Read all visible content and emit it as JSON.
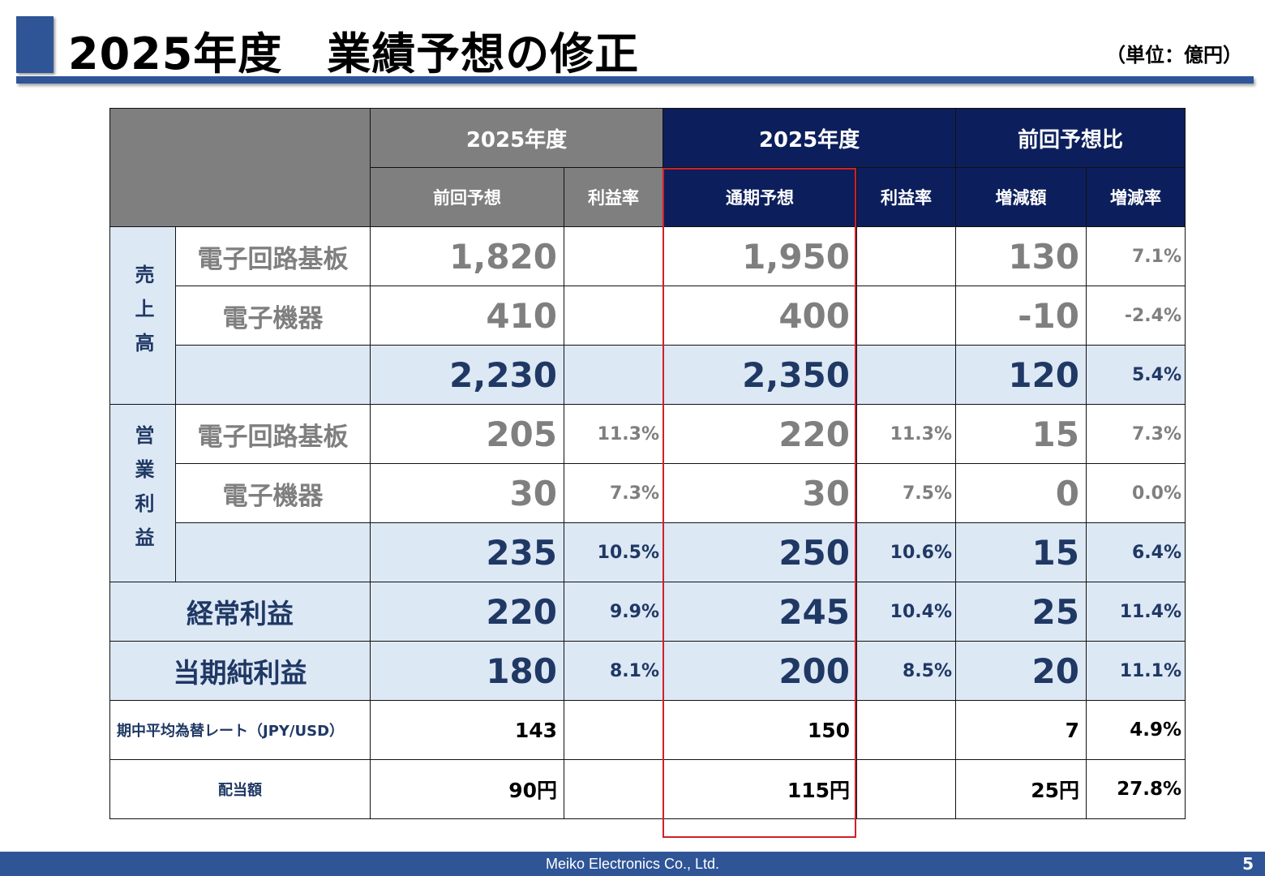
{
  "title": "2025年度　業績予想の修正",
  "unit": "（単位：億円）",
  "header": {
    "group_prev": "2025年度",
    "group_cur": "2025年度",
    "group_diff": "前回予想比",
    "prev_forecast": "前回予想",
    "prev_margin": "利益率",
    "cur_forecast": "通期予想",
    "cur_margin": "利益率",
    "diff_amount": "増減額",
    "diff_rate": "増減率"
  },
  "colors": {
    "navy": "#0c1f5c",
    "gray_header": "#7f7f7f",
    "light_blue": "#dde8f5",
    "highlight": "#d0202a",
    "brand": "#2f5597"
  },
  "groups": [
    {
      "label": "売上高",
      "rows": [
        {
          "name": "電子回路基板",
          "prev": "1,820",
          "prev_margin": "",
          "cur": "1,950",
          "cur_margin": "",
          "diff": "130",
          "rate": "7.1%"
        },
        {
          "name": "電子機器",
          "prev": "410",
          "prev_margin": "",
          "cur": "400",
          "cur_margin": "",
          "diff": "-10",
          "rate": "-2.4%"
        }
      ],
      "total": {
        "prev": "2,230",
        "prev_margin": "",
        "cur": "2,350",
        "cur_margin": "",
        "diff": "120",
        "rate": "5.4%"
      }
    },
    {
      "label": "営業利益",
      "rows": [
        {
          "name": "電子回路基板",
          "prev": "205",
          "prev_margin": "11.3%",
          "cur": "220",
          "cur_margin": "11.3%",
          "diff": "15",
          "rate": "7.3%"
        },
        {
          "name": "電子機器",
          "prev": "30",
          "prev_margin": "7.3%",
          "cur": "30",
          "cur_margin": "7.5%",
          "diff": "0",
          "rate": "0.0%"
        }
      ],
      "total": {
        "prev": "235",
        "prev_margin": "10.5%",
        "cur": "250",
        "cur_margin": "10.6%",
        "diff": "15",
        "rate": "6.4%"
      }
    }
  ],
  "totals": [
    {
      "name": "経常利益",
      "prev": "220",
      "prev_margin": "9.9%",
      "cur": "245",
      "cur_margin": "10.4%",
      "diff": "25",
      "rate": "11.4%"
    },
    {
      "name": "当期純利益",
      "prev": "180",
      "prev_margin": "8.1%",
      "cur": "200",
      "cur_margin": "8.5%",
      "diff": "20",
      "rate": "11.1%"
    }
  ],
  "others": [
    {
      "name": "期中平均為替レート（JPY/USD）",
      "prev": "143",
      "prev_margin": "",
      "cur": "150",
      "cur_margin": "",
      "diff": "7",
      "rate": "4.9%"
    },
    {
      "name": "配当額",
      "prev": "90円",
      "prev_margin": "",
      "cur": "115円",
      "cur_margin": "",
      "diff": "25円",
      "rate": "27.8%"
    }
  ],
  "footer": {
    "company": "Meiko Electronics Co., Ltd.",
    "page": "5"
  }
}
